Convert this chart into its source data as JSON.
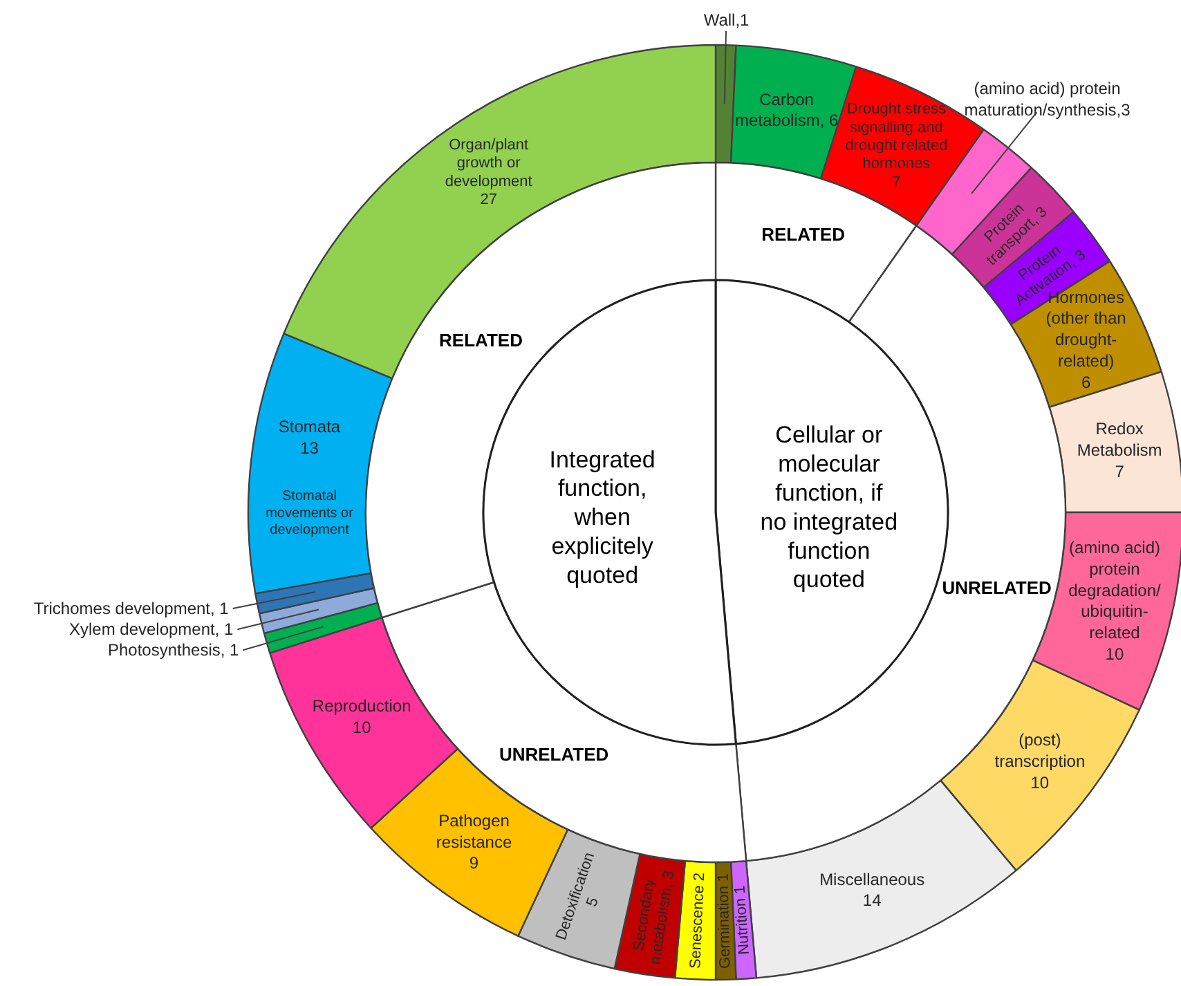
{
  "chart_data": {
    "type": "donut",
    "categories": [
      "Wall",
      "Carbon metabolism",
      "Drought stress signalling and drought related hormones",
      "(amino acid) protein maturation/synthesis",
      "Protein transport",
      "Protein Activation",
      "Hormones (other than drought-related)",
      "Redox Metabolism",
      "(amino acid) protein degradation/ ubiquitin-related",
      "(post) transcription",
      "Miscellaneous",
      "Nutrition",
      "Germination",
      "Senescence",
      "Secondary metabolism",
      "Detoxification",
      "Pathogen resistance",
      "Reproduction",
      "Photosynthesis",
      "Xylem development",
      "Trichomes development",
      "Stomata",
      "Organ/plant growth or development"
    ],
    "series": [
      {
        "values": [
          1,
          6,
          7,
          3,
          3,
          3,
          6,
          7,
          10,
          10,
          14,
          1,
          1,
          2,
          3,
          5,
          9,
          10,
          1,
          1,
          1,
          13,
          27
        ],
        "value_labels": [
          ",1",
          ", 6",
          "7",
          ",3",
          ", 3",
          ", 3",
          "6",
          "7",
          "10",
          "10",
          "14",
          "1",
          "1",
          "2",
          ", 3",
          "5",
          "9",
          "10",
          ", 1",
          ", 1",
          ", 1",
          "13",
          "27"
        ],
        "colors": [
          "#548235",
          "#00b050",
          "#ff0000",
          "#ff66cc",
          "#cc3399",
          "#9900ff",
          "#bf8f00",
          "#fbe5d6",
          "#ff6699",
          "#ffd966",
          "#ededed",
          "#cc66ff",
          "#7f6000",
          "#ffff00",
          "#c00000",
          "#bfbfbf",
          "#ffc000",
          "#ff3399",
          "#00b050",
          "#8eaadb",
          "#2e75b6",
          "#00b0f0",
          "#92d050"
        ]
      },
      {
        "values": [
          9.72,
          null,
          null,
          38.89,
          null,
          null,
          null,
          null,
          null,
          null,
          null,
          21.53,
          null,
          null,
          null,
          null,
          null,
          null,
          29.86,
          null,
          null,
          null,
          null
        ],
        "colors": [
          "#ffffff",
          null,
          null,
          "#ffffff",
          null,
          null,
          null,
          null,
          null,
          null,
          null,
          "#ffffff",
          null,
          null,
          null,
          null,
          null,
          null,
          "#ffffff",
          null,
          null,
          null,
          null
        ]
      },
      {
        "values": [
          48.61,
          null,
          null,
          null,
          null,
          null,
          null,
          null,
          null,
          null,
          null,
          51.39,
          null,
          null,
          null,
          null,
          null,
          null,
          null,
          null,
          null,
          null,
          null
        ],
        "colors": [
          "#ffffff",
          null,
          null,
          null,
          null,
          null,
          null,
          null,
          null,
          null,
          null,
          "#ffffff",
          null,
          null,
          null,
          null,
          null,
          null,
          null,
          null,
          null,
          null,
          null
        ]
      }
    ],
    "annotations": [
      {
        "text": "Stomatal movements or development",
        "x": "Stomata"
      },
      "RELATED",
      "UNRELATED",
      "UNRELATED",
      "RELATED",
      "Cellular or molecular function, if no integrated function quoted",
      "Integrated function, when explicitely quoted"
    ]
  }
}
